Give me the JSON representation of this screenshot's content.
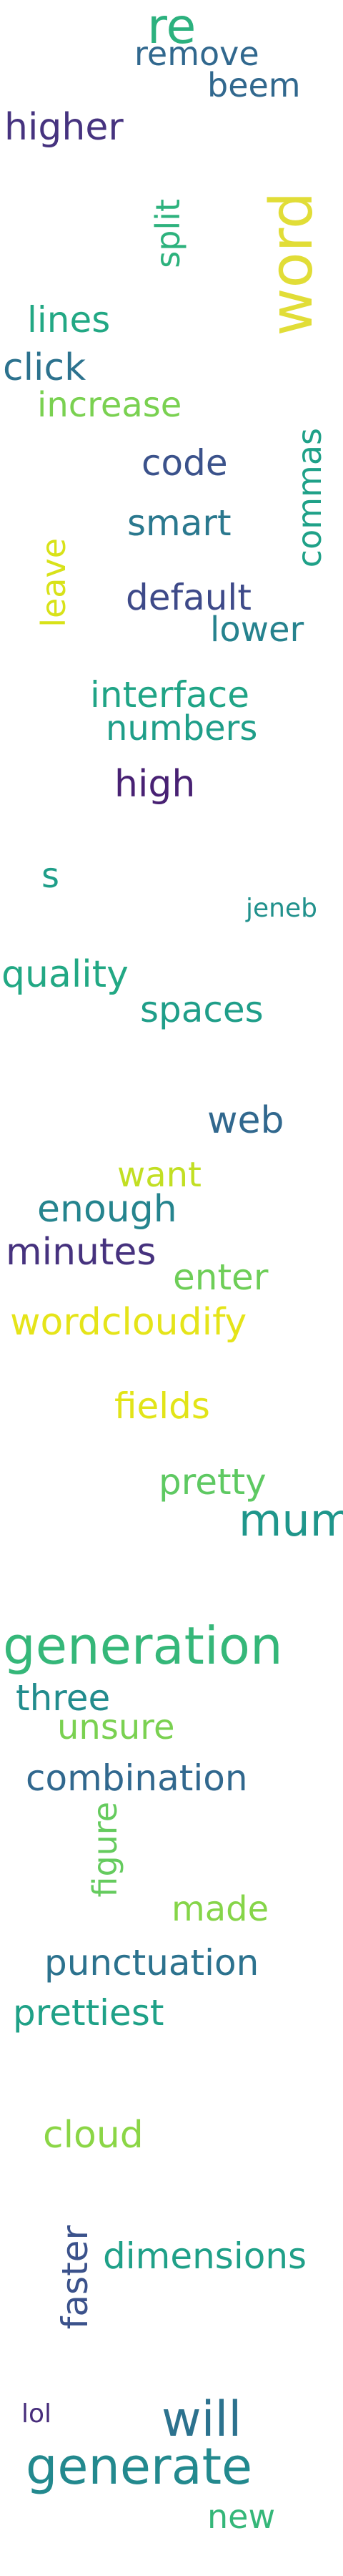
{
  "words": [
    {
      "text": "re",
      "color": "#2cb17e"
    },
    {
      "text": "remove",
      "color": "#31688e"
    },
    {
      "text": "beem",
      "color": "#31688e"
    },
    {
      "text": "higher",
      "color": "#46337f"
    },
    {
      "text": "word",
      "color": "#e1dd37"
    },
    {
      "text": "split",
      "color": "#2db27d"
    },
    {
      "text": "lines",
      "color": "#22a884"
    },
    {
      "text": "click",
      "color": "#2c728e"
    },
    {
      "text": "increase",
      "color": "#7ad151"
    },
    {
      "text": "commas",
      "color": "#1fa188"
    },
    {
      "text": "code",
      "color": "#3b528b"
    },
    {
      "text": "smart",
      "color": "#2a788e"
    },
    {
      "text": "leave",
      "color": "#d8e219"
    },
    {
      "text": "default",
      "color": "#3e4a89"
    },
    {
      "text": "lower",
      "color": "#26828e"
    },
    {
      "text": "interface",
      "color": "#20a486"
    },
    {
      "text": "numbers",
      "color": "#1f9e89"
    },
    {
      "text": "high",
      "color": "#482173"
    },
    {
      "text": "s",
      "color": "#1f9e89"
    },
    {
      "text": "jeneb",
      "color": "#21918c"
    },
    {
      "text": "quality",
      "color": "#22a884"
    },
    {
      "text": "spaces",
      "color": "#1f9e89"
    },
    {
      "text": "web",
      "color": "#31688e"
    },
    {
      "text": "want",
      "color": "#c2df23"
    },
    {
      "text": "enough",
      "color": "#25848e"
    },
    {
      "text": "minutes",
      "color": "#46327e"
    },
    {
      "text": "enter",
      "color": "#6ece58"
    },
    {
      "text": "wordcloudify",
      "color": "#e5e419"
    },
    {
      "text": "fields",
      "color": "#e2e418"
    },
    {
      "text": "pretty",
      "color": "#5ec962"
    },
    {
      "text": "mum",
      "color": "#1f968b"
    },
    {
      "text": "generation",
      "color": "#35b779"
    },
    {
      "text": "three",
      "color": "#228c8d"
    },
    {
      "text": "unsure",
      "color": "#7ad151"
    },
    {
      "text": "combination",
      "color": "#31688e"
    },
    {
      "text": "figure",
      "color": "#65cb5e"
    },
    {
      "text": "made",
      "color": "#86d549"
    },
    {
      "text": "punctuation",
      "color": "#2c728e"
    },
    {
      "text": "prettiest",
      "color": "#1fa187"
    },
    {
      "text": "cloud",
      "color": "#8bd646"
    },
    {
      "text": "faster",
      "color": "#3b528b"
    },
    {
      "text": "dimensions",
      "color": "#1fa088"
    },
    {
      "text": "lol",
      "color": "#472d7b"
    },
    {
      "text": "will",
      "color": "#2c728e"
    },
    {
      "text": "generate",
      "color": "#23898e"
    },
    {
      "text": "new",
      "color": "#35b779"
    }
  ]
}
